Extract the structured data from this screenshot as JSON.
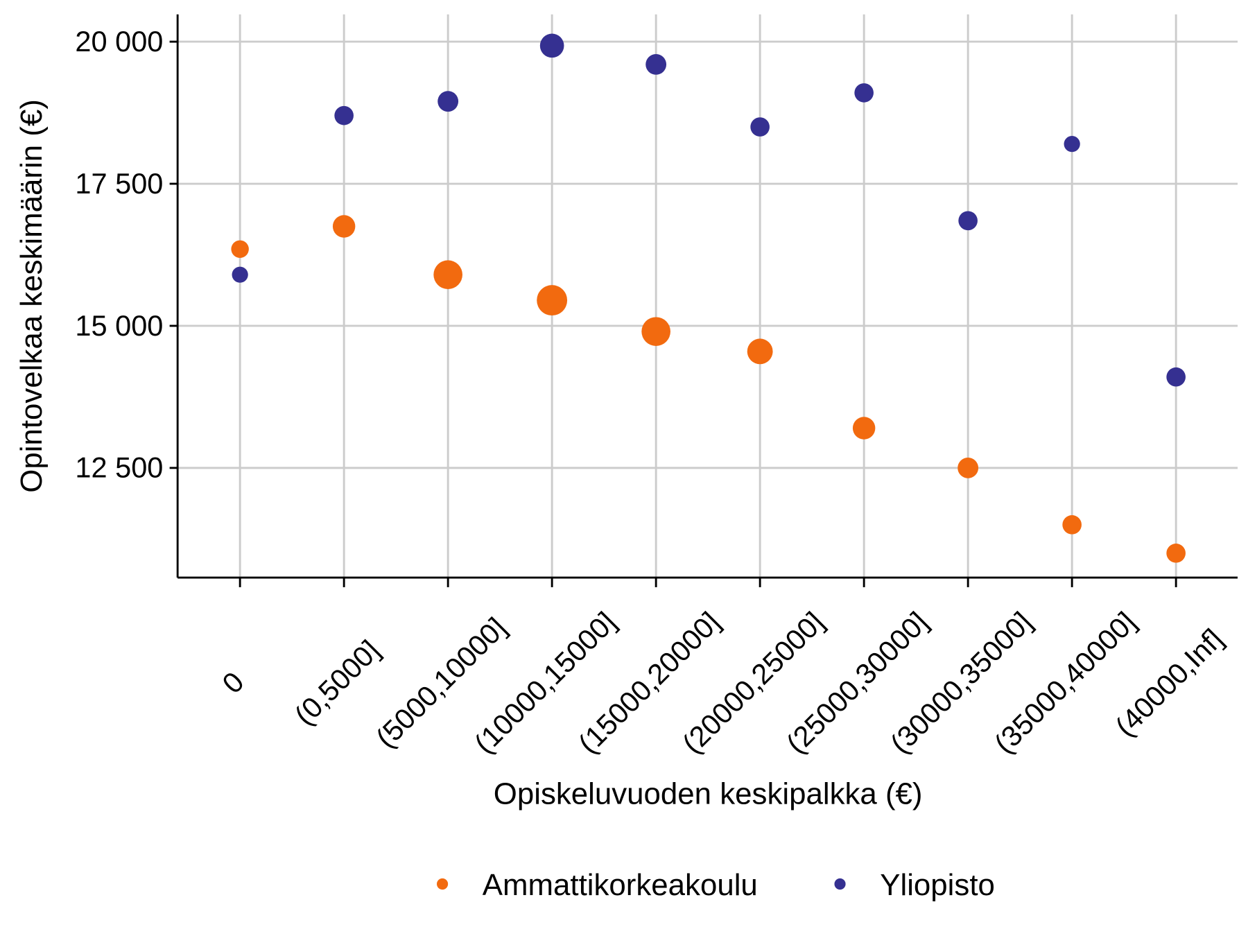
{
  "chart_data": {
    "type": "scatter",
    "xlabel": "Opiskeluvuoden keskipalkka (€)",
    "ylabel": "Opintovelkaa keskimäärin (€)",
    "categories": [
      "0",
      "(0,5000]",
      "(5000,10000]",
      "(10000,15000]",
      "(15000,20000]",
      "(20000,25000]",
      "(25000,30000]",
      "(30000,35000]",
      "(35000,40000]",
      "(40000,Inf]"
    ],
    "yticks": [
      12500,
      15000,
      17500,
      20000
    ],
    "ytick_labels": [
      "12 500",
      "15 000",
      "17 500",
      "20 000"
    ],
    "ylim": [
      10570,
      20480
    ],
    "grid": true,
    "legend_position": "bottom",
    "series": [
      {
        "name": "Ammattikorkeakoulu",
        "color": "#f26a0f",
        "values": [
          16350,
          16750,
          15900,
          15450,
          14900,
          14550,
          13200,
          12500,
          11500,
          11000
        ],
        "relative_size": [
          0.58,
          0.74,
          0.95,
          1.0,
          0.95,
          0.84,
          0.74,
          0.68,
          0.63,
          0.63
        ]
      },
      {
        "name": "Yliopisto",
        "color": "#353091",
        "values": [
          15900,
          18700,
          18950,
          19930,
          19600,
          18500,
          19100,
          16850,
          18200,
          14100
        ],
        "relative_size": [
          0.53,
          0.63,
          0.68,
          0.79,
          0.68,
          0.63,
          0.63,
          0.63,
          0.53,
          0.63
        ]
      }
    ]
  }
}
